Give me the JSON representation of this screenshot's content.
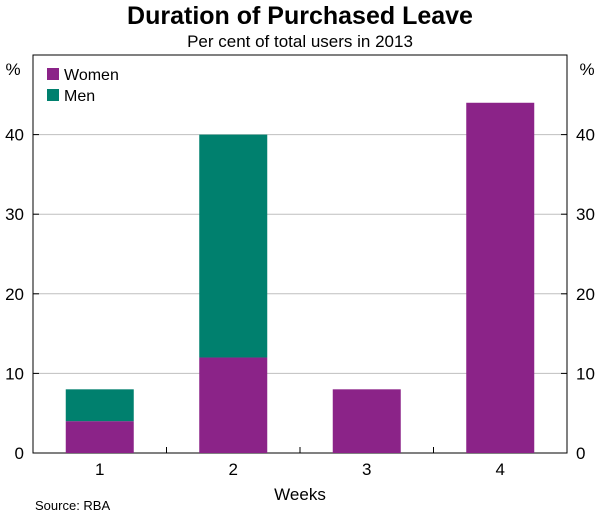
{
  "chart_data": {
    "type": "bar",
    "stacked": true,
    "title": "Duration of Purchased Leave",
    "subtitle": "Per cent of total users in 2013",
    "xlabel": "Weeks",
    "ylabel_left": "%",
    "ylabel_right": "%",
    "categories": [
      "1",
      "2",
      "3",
      "4"
    ],
    "series": [
      {
        "name": "Women",
        "color": "#8B2388",
        "values": [
          4,
          12,
          8,
          44
        ]
      },
      {
        "name": "Men",
        "color": "#00806E",
        "values": [
          4,
          28,
          0,
          0
        ]
      }
    ],
    "ylim": [
      0,
      50
    ],
    "yticks": [
      0,
      10,
      20,
      30,
      40
    ],
    "grid": true,
    "legend_position": "top-left",
    "source": "Source: RBA"
  }
}
